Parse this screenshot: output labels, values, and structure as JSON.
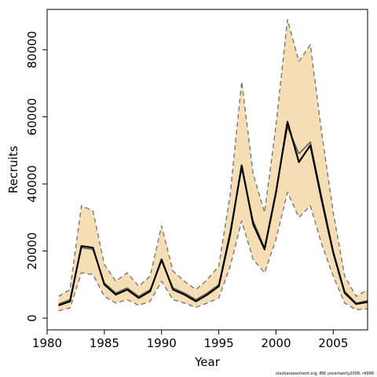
{
  "chart_data": {
    "type": "line",
    "xlabel": "Year",
    "ylabel": "Recruits",
    "xlim": [
      1980,
      2008
    ],
    "ylim": [
      -3500,
      92000
    ],
    "xticks": [
      1980,
      1985,
      1990,
      1995,
      2000,
      2005
    ],
    "yticks": [
      0,
      20000,
      40000,
      60000,
      80000
    ],
    "grid": false,
    "legend": "none",
    "caption": "stockassessment.org, BW uncertainty2008, r4999",
    "colors": {
      "band": "#f5deb3",
      "estimate": "#000000",
      "alt": "#555555",
      "bounds": "#777777"
    },
    "x": [
      1981,
      1982,
      1983,
      1984,
      1985,
      1986,
      1987,
      1988,
      1989,
      1990,
      1991,
      1992,
      1993,
      1994,
      1995,
      1996,
      1997,
      1998,
      1999,
      2000,
      2001,
      2002,
      2003,
      2004,
      2005,
      2006,
      2007,
      2008
    ],
    "series": [
      {
        "name": "",
        "role": "estimate",
        "values": [
          3800,
          5000,
          21500,
          21000,
          10000,
          7000,
          8500,
          6000,
          8000,
          17500,
          8500,
          7000,
          5000,
          7000,
          9500,
          25000,
          45500,
          28000,
          20500,
          37500,
          58500,
          46500,
          51500,
          35000,
          19500,
          7500,
          4200,
          4800
        ]
      },
      {
        "name": "",
        "role": "alternative",
        "values": [
          4200,
          5500,
          21000,
          20500,
          10500,
          7500,
          9000,
          6500,
          8500,
          17000,
          9000,
          7500,
          5500,
          7500,
          10000,
          26000,
          44500,
          29000,
          21000,
          38000,
          57000,
          49000,
          52500,
          36000,
          20000,
          8000,
          4500,
          5200
        ]
      },
      {
        "name": "",
        "role": "upper",
        "values": [
          6500,
          8500,
          33500,
          32000,
          16000,
          11000,
          13500,
          9500,
          12500,
          27500,
          14000,
          11000,
          8500,
          11500,
          15500,
          37000,
          70500,
          43000,
          31500,
          57500,
          89000,
          76500,
          81500,
          55000,
          31500,
          12500,
          6500,
          8500
        ]
      },
      {
        "name": "",
        "role": "lower",
        "values": [
          2200,
          3000,
          13500,
          13000,
          6500,
          4500,
          5500,
          3800,
          5000,
          11000,
          5500,
          4500,
          3200,
          4500,
          6000,
          15500,
          29000,
          17500,
          13500,
          23500,
          37500,
          30000,
          33500,
          22000,
          12500,
          4500,
          2500,
          2800
        ]
      }
    ]
  }
}
